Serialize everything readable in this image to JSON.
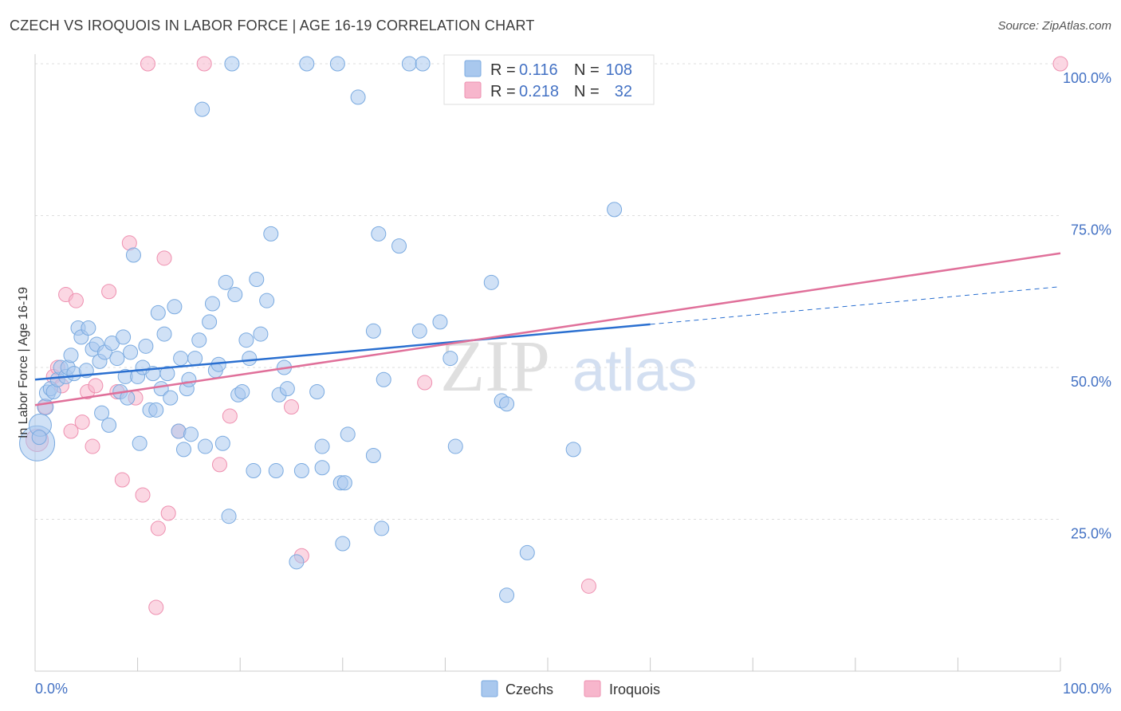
{
  "title": "CZECH VS IROQUOIS IN LABOR FORCE | AGE 16-19 CORRELATION CHART",
  "source": "Source: ZipAtlas.com",
  "watermark": {
    "zip": "ZIP",
    "atlas": "atlas"
  },
  "colors": {
    "czech_fill": "#a9c8ee",
    "czech_stroke": "#7aaae0",
    "czech_line": "#2a6fd0",
    "iroquois_fill": "#f7b6cc",
    "iroquois_stroke": "#ee90b0",
    "iroquois_line": "#e0709a",
    "value_blue": "#4472c4",
    "grid": "#dddddd"
  },
  "legend": {
    "r_label": "R =",
    "n_label": "N =",
    "rows": [
      {
        "series": "czechs",
        "r": "0.116",
        "n": "108"
      },
      {
        "series": "iroquois",
        "r": "0.218",
        "n": "32"
      }
    ]
  },
  "bottom_legend": [
    {
      "series": "czechs",
      "label": "Czechs"
    },
    {
      "series": "iroquois",
      "label": "Iroquois"
    }
  ],
  "chart_data": {
    "type": "scatter",
    "title": "CZECH VS IROQUOIS IN LABOR FORCE | AGE 16-19 CORRELATION CHART",
    "xlabel": "",
    "ylabel": "In Labor Force | Age 16-19",
    "xlim": [
      0,
      100
    ],
    "ylim": [
      0,
      100
    ],
    "x_tick_labels": [
      {
        "value": 0,
        "label": "0.0%"
      },
      {
        "value": 100,
        "label": "100.0%"
      }
    ],
    "y_tick_labels": [
      {
        "value": 25,
        "label": "25.0%"
      },
      {
        "value": 50,
        "label": "50.0%"
      },
      {
        "value": 75,
        "label": "75.0%"
      },
      {
        "value": 100,
        "label": "100.0%"
      }
    ],
    "grid": true,
    "legend_position": "top-center",
    "series": [
      {
        "name": "Czechs",
        "key": "czechs",
        "trend": {
          "x": [
            0,
            60
          ],
          "y": [
            48.0,
            57.1
          ],
          "dashed_to": [
            100,
            63.3
          ]
        },
        "points": [
          [
            0.2,
            37.5,
            22
          ],
          [
            0.5,
            40.5,
            14
          ],
          [
            1.0,
            43.5,
            10
          ],
          [
            1.2,
            45.8,
            10
          ],
          [
            1.5,
            46.5,
            9
          ],
          [
            1.8,
            46.0,
            9
          ],
          [
            2.2,
            48.0,
            9
          ],
          [
            2.5,
            50.0,
            9
          ],
          [
            3.0,
            48.5,
            9
          ],
          [
            3.2,
            50.0,
            9
          ],
          [
            3.5,
            52.0,
            9
          ],
          [
            3.8,
            49.0,
            9
          ],
          [
            4.2,
            56.5,
            9
          ],
          [
            4.5,
            55.0,
            9
          ],
          [
            5.0,
            49.5,
            9
          ],
          [
            5.2,
            56.5,
            9
          ],
          [
            5.6,
            53.0,
            9
          ],
          [
            6.0,
            53.8,
            9
          ],
          [
            6.3,
            51.0,
            9
          ],
          [
            6.5,
            42.5,
            9
          ],
          [
            6.8,
            52.5,
            9
          ],
          [
            7.2,
            40.5,
            9
          ],
          [
            7.5,
            54.0,
            9
          ],
          [
            8.0,
            51.5,
            9
          ],
          [
            8.3,
            46.0,
            9
          ],
          [
            8.6,
            55.0,
            9
          ],
          [
            8.8,
            48.5,
            9
          ],
          [
            9.0,
            45.0,
            9
          ],
          [
            9.3,
            52.5,
            9
          ],
          [
            9.6,
            68.5,
            9
          ],
          [
            10.0,
            48.5,
            9
          ],
          [
            10.2,
            37.5,
            9
          ],
          [
            10.5,
            50.0,
            9
          ],
          [
            10.8,
            53.5,
            9
          ],
          [
            11.2,
            43.0,
            9
          ],
          [
            11.5,
            49.0,
            9
          ],
          [
            11.8,
            43.0,
            9
          ],
          [
            12.0,
            59.0,
            9
          ],
          [
            12.3,
            46.5,
            9
          ],
          [
            12.6,
            55.5,
            9
          ],
          [
            12.9,
            49.0,
            9
          ],
          [
            13.2,
            45.0,
            9
          ],
          [
            13.6,
            60.0,
            9
          ],
          [
            14.0,
            39.5,
            9
          ],
          [
            14.2,
            51.5,
            9
          ],
          [
            14.5,
            36.5,
            9
          ],
          [
            14.8,
            46.5,
            9
          ],
          [
            15.0,
            48.0,
            9
          ],
          [
            15.2,
            39.0,
            9
          ],
          [
            15.6,
            51.5,
            9
          ],
          [
            16.0,
            54.5,
            9
          ],
          [
            16.3,
            92.5,
            9
          ],
          [
            16.6,
            37.0,
            9
          ],
          [
            17.0,
            57.5,
            9
          ],
          [
            17.3,
            60.5,
            9
          ],
          [
            17.6,
            49.5,
            9
          ],
          [
            17.9,
            50.5,
            9
          ],
          [
            18.3,
            37.5,
            9
          ],
          [
            18.6,
            64.0,
            9
          ],
          [
            18.9,
            25.5,
            9
          ],
          [
            19.2,
            100.0,
            9
          ],
          [
            19.5,
            62.0,
            9
          ],
          [
            19.8,
            45.5,
            9
          ],
          [
            20.2,
            46.0,
            9
          ],
          [
            20.6,
            54.5,
            9
          ],
          [
            20.9,
            51.5,
            9
          ],
          [
            21.3,
            33.0,
            9
          ],
          [
            21.6,
            64.5,
            9
          ],
          [
            22.0,
            55.5,
            9
          ],
          [
            22.6,
            61.0,
            9
          ],
          [
            23.0,
            72.0,
            9
          ],
          [
            23.5,
            33.0,
            9
          ],
          [
            23.8,
            45.5,
            9
          ],
          [
            24.3,
            50.0,
            9
          ],
          [
            24.6,
            46.5,
            9
          ],
          [
            25.5,
            18.0,
            9
          ],
          [
            26.0,
            33.0,
            9
          ],
          [
            26.5,
            100.0,
            9
          ],
          [
            27.5,
            46.0,
            9
          ],
          [
            28.0,
            37.0,
            9
          ],
          [
            28.0,
            33.5,
            9
          ],
          [
            29.5,
            100.0,
            9
          ],
          [
            29.8,
            31.0,
            9
          ],
          [
            30.2,
            31.0,
            9
          ],
          [
            30.0,
            21.0,
            9
          ],
          [
            30.5,
            39.0,
            9
          ],
          [
            31.5,
            94.5,
            9
          ],
          [
            33.0,
            35.5,
            9
          ],
          [
            33.0,
            56.0,
            9
          ],
          [
            33.5,
            72.0,
            9
          ],
          [
            33.8,
            23.5,
            9
          ],
          [
            34.0,
            48.0,
            9
          ],
          [
            35.5,
            70.0,
            9
          ],
          [
            36.5,
            100.0,
            9
          ],
          [
            37.5,
            56.0,
            9
          ],
          [
            37.8,
            100.0,
            9
          ],
          [
            39.5,
            57.5,
            9
          ],
          [
            40.5,
            51.5,
            9
          ],
          [
            41.0,
            37.0,
            9
          ],
          [
            44.5,
            64.0,
            9
          ],
          [
            45.5,
            44.5,
            9
          ],
          [
            46.0,
            44.0,
            9
          ],
          [
            46.0,
            12.5,
            9
          ],
          [
            48.0,
            19.5,
            9
          ],
          [
            52.5,
            36.5,
            9
          ],
          [
            55.0,
            100.0,
            9
          ],
          [
            56.5,
            76.0,
            9
          ],
          [
            0.4,
            38.5,
            9
          ]
        ]
      },
      {
        "name": "Iroquois",
        "key": "iroquois",
        "trend": {
          "x": [
            0,
            100
          ],
          "y": [
            43.8,
            68.8
          ]
        },
        "points": [
          [
            0.2,
            38.0,
            14
          ],
          [
            1.0,
            43.5,
            9
          ],
          [
            1.8,
            48.5,
            9
          ],
          [
            2.2,
            50.0,
            9
          ],
          [
            2.6,
            47.0,
            9
          ],
          [
            3.0,
            62.0,
            9
          ],
          [
            3.5,
            39.5,
            9
          ],
          [
            4.0,
            61.0,
            9
          ],
          [
            4.6,
            41.0,
            9
          ],
          [
            5.1,
            46.0,
            9
          ],
          [
            5.6,
            37.0,
            9
          ],
          [
            5.9,
            47.0,
            9
          ],
          [
            7.2,
            62.5,
            9
          ],
          [
            8.0,
            46.0,
            9
          ],
          [
            8.5,
            31.5,
            9
          ],
          [
            9.2,
            70.5,
            9
          ],
          [
            9.8,
            45.0,
            9
          ],
          [
            10.5,
            29.0,
            9
          ],
          [
            11.0,
            100.0,
            9
          ],
          [
            11.8,
            10.5,
            9
          ],
          [
            12.0,
            23.5,
            9
          ],
          [
            12.6,
            68.0,
            9
          ],
          [
            13.0,
            26.0,
            9
          ],
          [
            14.0,
            39.5,
            9
          ],
          [
            16.5,
            100.0,
            9
          ],
          [
            18.0,
            34.0,
            9
          ],
          [
            19.0,
            42.0,
            9
          ],
          [
            25.0,
            43.5,
            9
          ],
          [
            26.0,
            19.0,
            9
          ],
          [
            38.0,
            47.5,
            9
          ],
          [
            54.0,
            14.0,
            9
          ],
          [
            100.0,
            100.0,
            9
          ]
        ]
      }
    ]
  }
}
